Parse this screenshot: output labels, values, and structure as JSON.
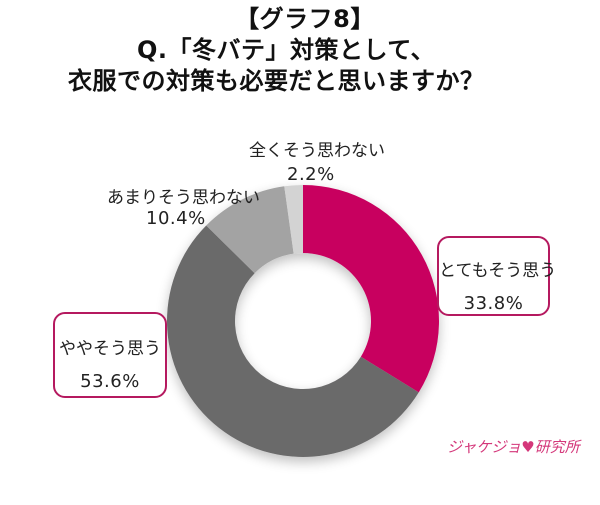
{
  "header": {
    "graph_label": "【グラフ8】",
    "question_line1": "Q.「冬バテ」対策として、",
    "question_line2": "衣服での対策も必要だと思いますか？"
  },
  "chart_data": {
    "type": "pie",
    "subtype": "donut",
    "title": "Q.「冬バテ」対策として、衣服での対策も必要だと思いますか？",
    "start_angle": "12 o'clock, clockwise",
    "categories": [
      "とてもそう思う",
      "ややそう思う",
      "あまりそう思わない",
      "全くそう思わない"
    ],
    "values": [
      33.8,
      53.6,
      10.4,
      2.2
    ],
    "unit": "%",
    "colors": [
      "#c8005f",
      "#6b6a6b",
      "#a3a3a3",
      "#d3d3d3"
    ],
    "legend": "none (labels placed next to slices)"
  },
  "labels": {
    "very_much": {
      "text": "とてもそう思う",
      "pct": "33.8%"
    },
    "somewhat": {
      "text": "ややそう思う",
      "pct": "53.6%"
    },
    "not_much": {
      "text": "あまりそう思わない",
      "pct": "10.4%"
    },
    "not_at_all": {
      "text": "全くそう思わない",
      "pct": "2.2%"
    }
  },
  "branding": {
    "logo_text_left": "ジャケジョ",
    "logo_heart": "♥",
    "logo_text_right": "研究所"
  },
  "colors": {
    "accent": "#c8005f",
    "callout_border": "#b5195f"
  }
}
